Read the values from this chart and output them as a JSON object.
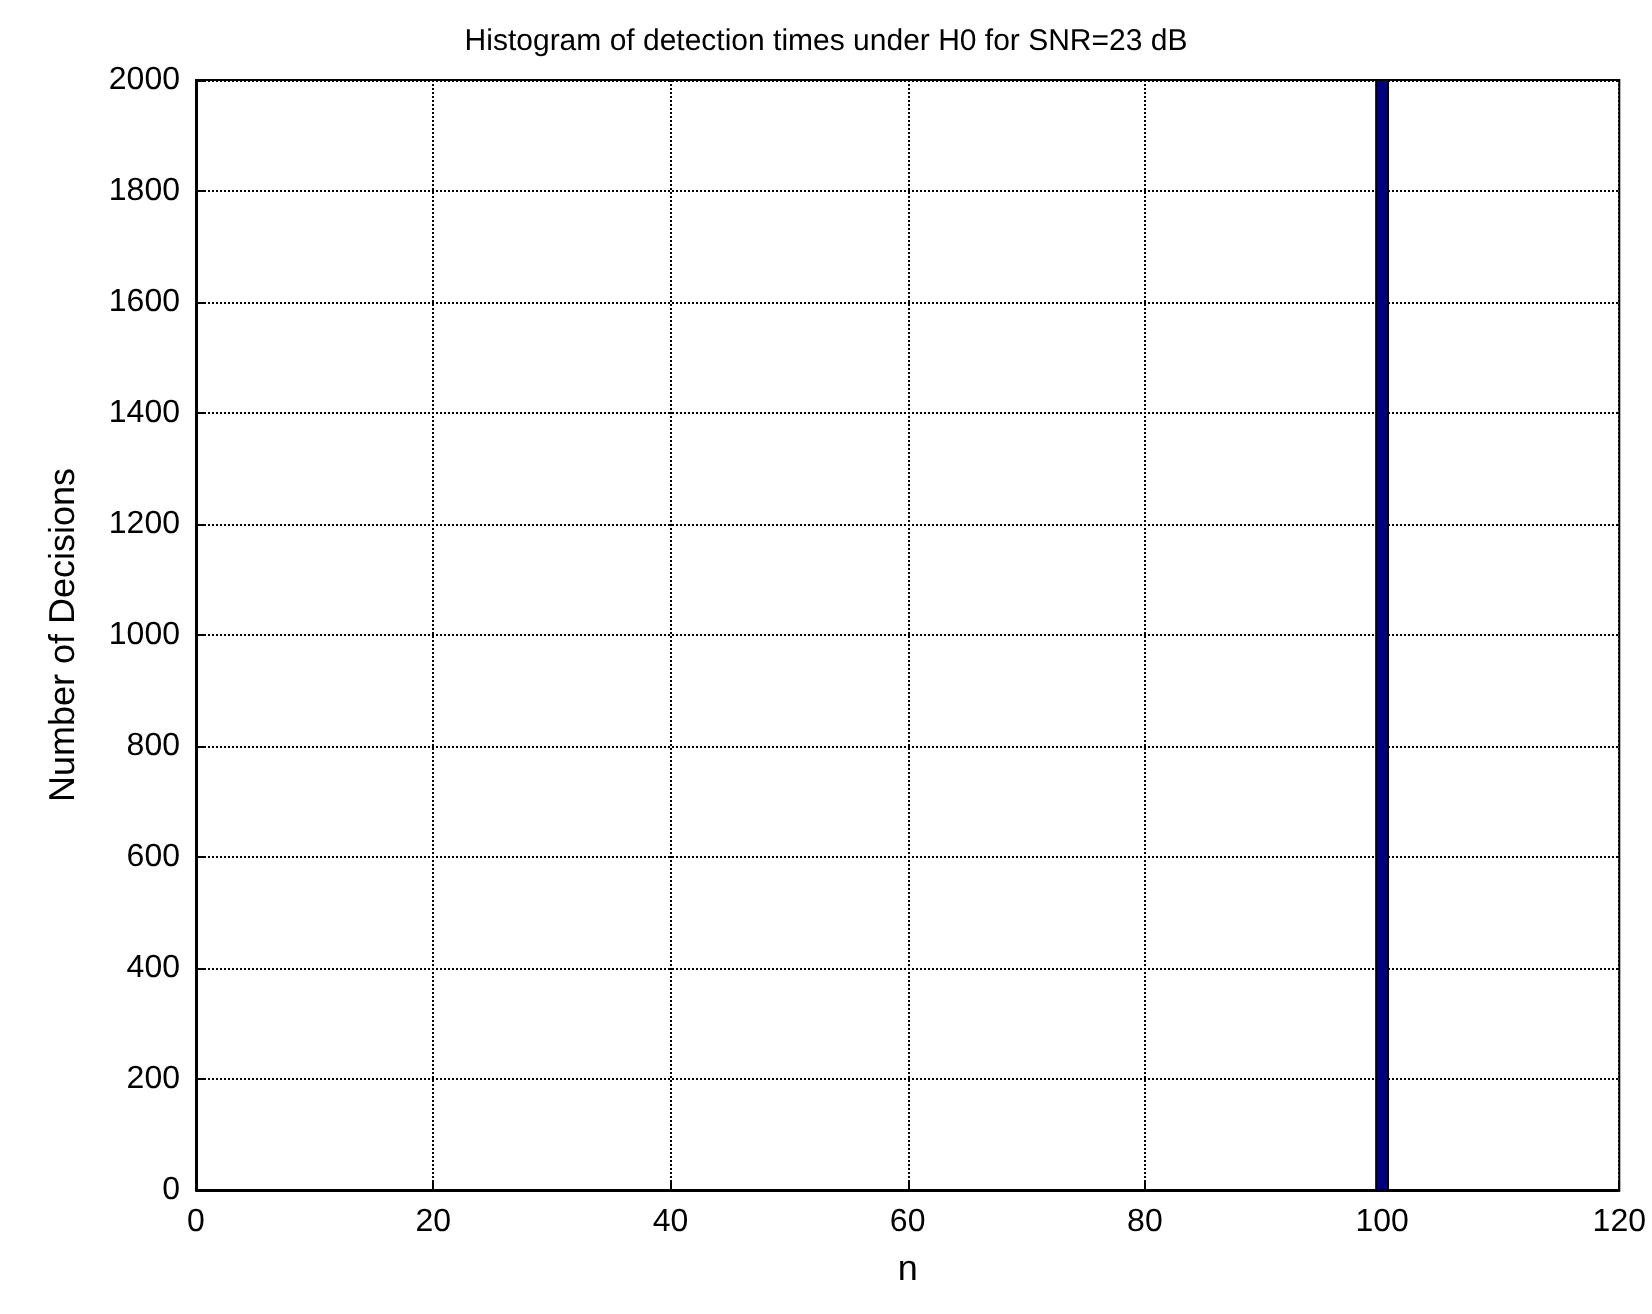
{
  "chart_data": {
    "type": "histogram",
    "title": "Histogram of detection times under H0 for SNR=23 dB",
    "xlabel": "n",
    "ylabel": "Number of Decisions",
    "bins": [
      99.5,
      100.5
    ],
    "values": [
      2000
    ],
    "color": "#00007f",
    "xlim": [
      0,
      120
    ],
    "xticks": [
      0,
      20,
      40,
      60,
      80,
      100,
      120
    ],
    "ylim": [
      0,
      2000
    ],
    "yticks": [
      0,
      200,
      400,
      600,
      800,
      1000,
      1200,
      1400,
      1600,
      1800,
      2000
    ],
    "grid": true,
    "line_style": "dotted"
  }
}
